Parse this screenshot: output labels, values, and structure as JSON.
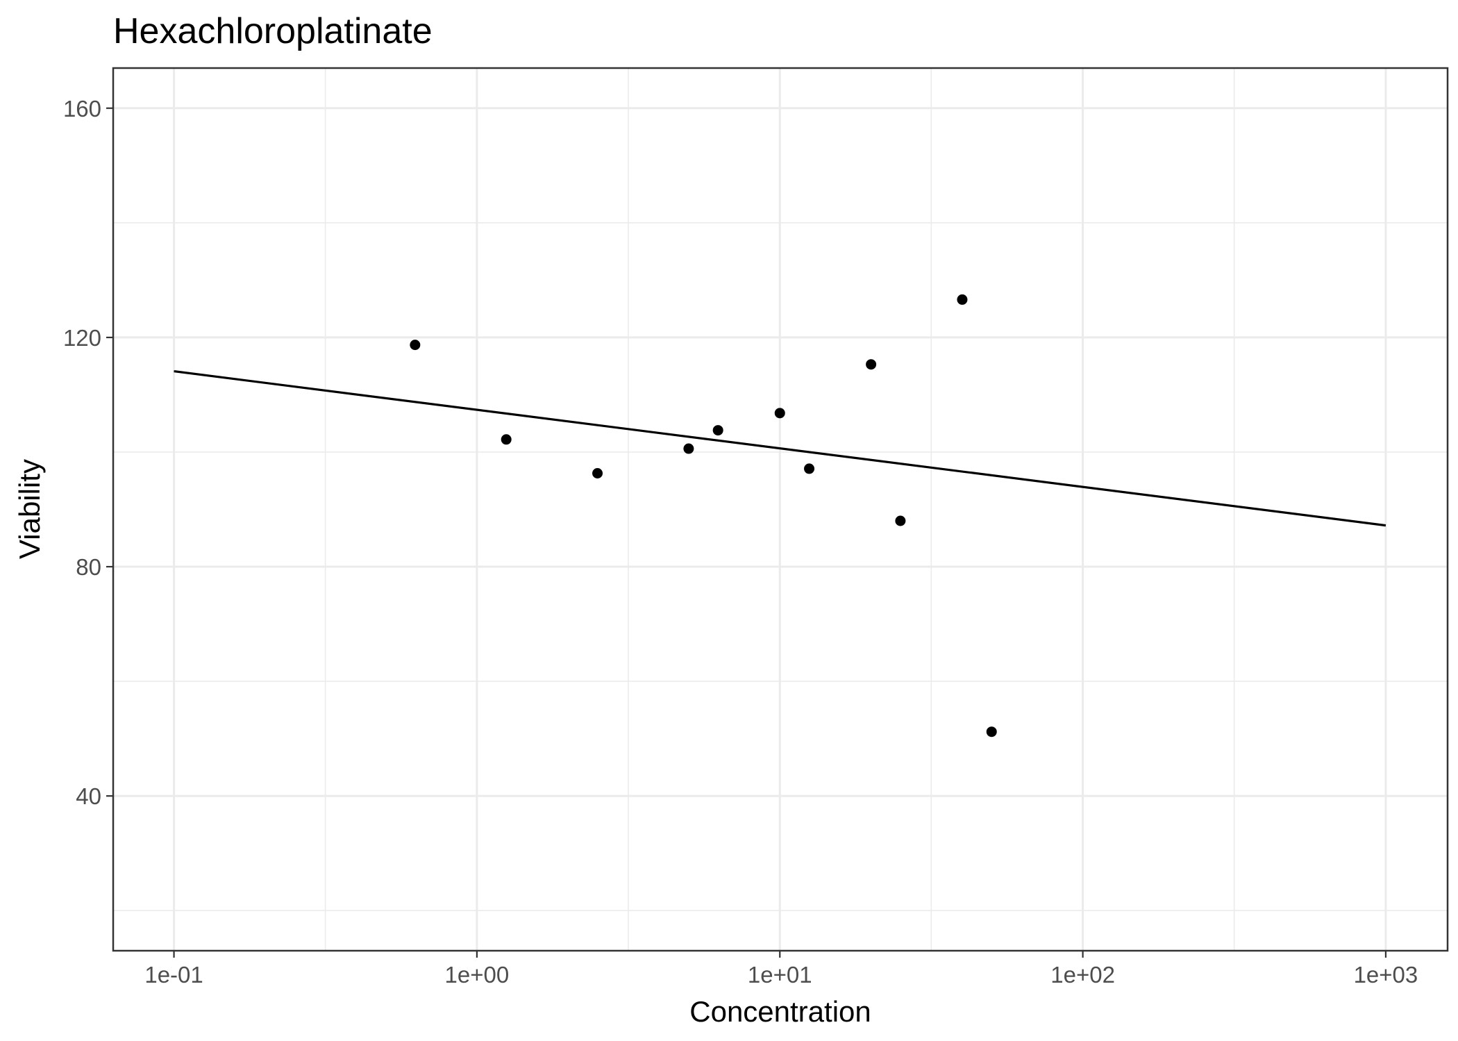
{
  "chart_data": {
    "type": "scatter",
    "title": "Hexachloroplatinate",
    "xlabel": "Concentration",
    "ylabel": "Viability",
    "x_scale": "log10",
    "xlim": [
      0.063,
      1600
    ],
    "ylim": [
      13,
      167
    ],
    "x_ticks": [
      0.1,
      1,
      10,
      100,
      1000
    ],
    "x_tick_labels": [
      "1e-01",
      "1e+00",
      "1e+01",
      "1e+02",
      "1e+03"
    ],
    "x_minor_ticks": [
      0.316,
      3.16,
      31.6,
      316
    ],
    "y_ticks": [
      40,
      80,
      120,
      160
    ],
    "y_tick_labels": [
      "40",
      "80",
      "120",
      "160"
    ],
    "y_minor_ticks": [
      20,
      60,
      100,
      140
    ],
    "grid": true,
    "legend": "none",
    "points": [
      {
        "x": 0.625,
        "y": 118.7
      },
      {
        "x": 1.25,
        "y": 102.2
      },
      {
        "x": 2.5,
        "y": 96.3
      },
      {
        "x": 5,
        "y": 100.6
      },
      {
        "x": 6.25,
        "y": 103.8
      },
      {
        "x": 10,
        "y": 106.8
      },
      {
        "x": 12.5,
        "y": 97.1
      },
      {
        "x": 20,
        "y": 115.3
      },
      {
        "x": 25,
        "y": 88.0
      },
      {
        "x": 40,
        "y": 126.6
      },
      {
        "x": 50,
        "y": 51.2
      }
    ],
    "fit_line": {
      "x": [
        0.1,
        1000
      ],
      "y": [
        114.1,
        87.2
      ]
    },
    "colors": {
      "points": "#000000",
      "fit_line": "#000000",
      "grid": "#ebebeb",
      "panel_border": "#333333",
      "tick_text": "#4d4d4d"
    }
  }
}
